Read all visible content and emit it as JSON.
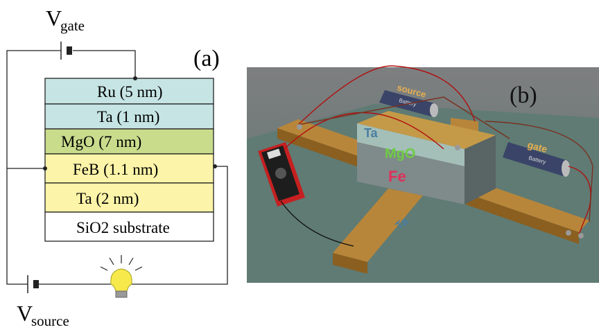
{
  "panel_a": {
    "label": "(a)",
    "gate_voltage": {
      "symbol": "V",
      "subscript": "gate"
    },
    "source_voltage": {
      "symbol": "V",
      "subscript": "source"
    },
    "layers": [
      "Ru (5 nm)",
      "Ta (1 nm)",
      "MgO (7 nm)",
      "FeB (1.1 nm)",
      "Ta (2 nm)",
      "SiO2 substrate"
    ]
  },
  "panel_b": {
    "label": "(b)",
    "batteries": [
      {
        "name": "source",
        "brand": "Battery"
      },
      {
        "name": "gate",
        "brand": "Battery"
      }
    ],
    "layer_labels": [
      "Ta",
      "MgO",
      "Fe",
      "Ta"
    ]
  }
}
